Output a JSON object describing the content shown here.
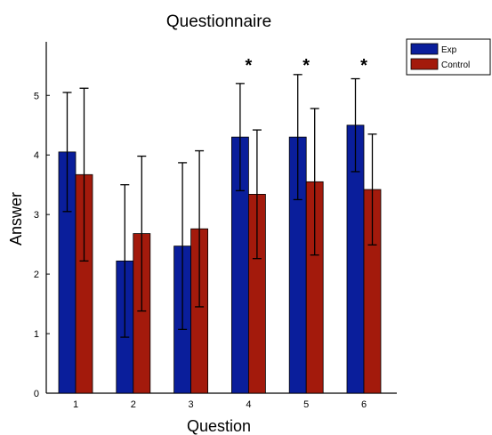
{
  "chart_data": {
    "type": "bar",
    "title": "Questionnaire",
    "xlabel": "Question",
    "ylabel": "Answer",
    "categories": [
      "1",
      "2",
      "3",
      "4",
      "5",
      "6"
    ],
    "ylim": [
      0,
      5.9
    ],
    "yticks": [
      0,
      1,
      2,
      3,
      4,
      5
    ],
    "series": [
      {
        "name": "Exp",
        "color": "#0a1e9b",
        "values": [
          4.05,
          2.22,
          2.47,
          4.3,
          4.3,
          4.5
        ],
        "error": [
          1.0,
          1.28,
          1.4,
          0.9,
          1.05,
          0.78
        ]
      },
      {
        "name": "Control",
        "color": "#a31a0c",
        "values": [
          3.67,
          2.68,
          2.76,
          3.34,
          3.55,
          3.42
        ],
        "error": [
          1.45,
          1.3,
          1.31,
          1.08,
          1.23,
          0.93
        ]
      }
    ],
    "significance": [
      "",
      "",
      "",
      "*",
      "*",
      "*"
    ],
    "legend_position": "top-right",
    "grid": false
  }
}
